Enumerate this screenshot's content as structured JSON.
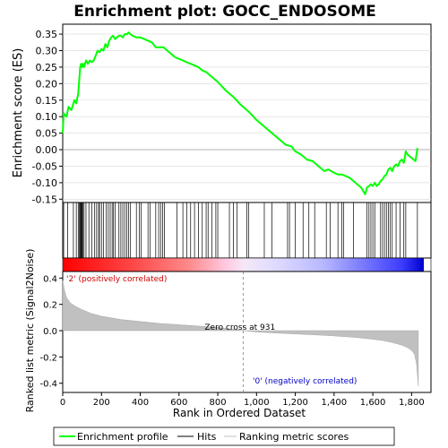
{
  "title": "Enrichment plot: GOCC_ENDOSOME",
  "chart_data": {
    "type": "line",
    "title": "Enrichment plot: GOCC_ENDOSOME",
    "es_panel": {
      "ylabel": "Enrichment score (ES)",
      "ylim": [
        -0.16,
        0.38
      ],
      "yticks": [
        -0.15,
        -0.1,
        -0.05,
        0.0,
        0.05,
        0.1,
        0.15,
        0.2,
        0.25,
        0.3,
        0.35
      ],
      "ytick_labels": [
        "-0.15",
        "-0.10",
        "-0.05",
        "0.00",
        "0.05",
        "0.10",
        "0.15",
        "0.20",
        "0.25",
        "0.30",
        "0.35"
      ],
      "series": [
        {
          "name": "Enrichment profile",
          "color": "#00ff00",
          "x": [
            0,
            5,
            10,
            20,
            30,
            45,
            60,
            70,
            80,
            90,
            95,
            100,
            105,
            110,
            120,
            130,
            140,
            150,
            160,
            170,
            180,
            190,
            200,
            210,
            220,
            230,
            240,
            250,
            260,
            270,
            280,
            290,
            300,
            310,
            320,
            330,
            340,
            350,
            360,
            380,
            400,
            420,
            440,
            460,
            480,
            500,
            520,
            540,
            560,
            580,
            600,
            620,
            640,
            660,
            680,
            700,
            720,
            740,
            760,
            780,
            800,
            840,
            880,
            920,
            960,
            1000,
            1050,
            1100,
            1150,
            1180,
            1200,
            1230,
            1260,
            1290,
            1320,
            1350,
            1370,
            1400,
            1420,
            1440,
            1460,
            1480,
            1500,
            1520,
            1540,
            1560,
            1570,
            1580,
            1590,
            1600,
            1610,
            1620,
            1630,
            1640,
            1650,
            1660,
            1670,
            1680,
            1690,
            1700,
            1710,
            1720,
            1730,
            1740,
            1750,
            1760,
            1770,
            1780,
            1790,
            1800,
            1810,
            1820,
            1830
          ],
          "y": [
            0.05,
            0.11,
            0.105,
            0.1,
            0.13,
            0.12,
            0.15,
            0.14,
            0.17,
            0.25,
            0.26,
            0.25,
            0.26,
            0.25,
            0.27,
            0.26,
            0.27,
            0.265,
            0.27,
            0.285,
            0.3,
            0.295,
            0.305,
            0.3,
            0.32,
            0.31,
            0.33,
            0.34,
            0.345,
            0.335,
            0.34,
            0.345,
            0.345,
            0.34,
            0.35,
            0.35,
            0.355,
            0.35,
            0.345,
            0.34,
            0.34,
            0.335,
            0.33,
            0.325,
            0.31,
            0.31,
            0.31,
            0.3,
            0.29,
            0.28,
            0.275,
            0.27,
            0.265,
            0.26,
            0.255,
            0.25,
            0.24,
            0.235,
            0.225,
            0.215,
            0.205,
            0.18,
            0.16,
            0.135,
            0.115,
            0.09,
            0.065,
            0.04,
            0.015,
            0.01,
            -0.005,
            -0.015,
            -0.03,
            -0.035,
            -0.05,
            -0.065,
            -0.06,
            -0.07,
            -0.075,
            -0.075,
            -0.08,
            -0.085,
            -0.095,
            -0.105,
            -0.115,
            -0.135,
            -0.115,
            -0.11,
            -0.105,
            -0.11,
            -0.1,
            -0.11,
            -0.105,
            -0.095,
            -0.09,
            -0.08,
            -0.075,
            -0.06,
            -0.055,
            -0.065,
            -0.05,
            -0.045,
            -0.05,
            -0.035,
            -0.03,
            -0.04,
            -0.005,
            -0.015,
            -0.02,
            -0.025,
            -0.03,
            -0.035,
            0.005
          ]
        }
      ]
    },
    "hits": {
      "name": "Hits",
      "color": "#000000",
      "x": [
        5,
        25,
        55,
        70,
        80,
        85,
        90,
        92,
        95,
        98,
        100,
        105,
        110,
        120,
        135,
        150,
        165,
        175,
        185,
        190,
        200,
        210,
        225,
        235,
        245,
        255,
        262,
        270,
        290,
        300,
        310,
        320,
        330,
        340,
        350,
        380,
        395,
        405,
        440,
        450,
        480,
        495,
        505,
        515,
        525,
        590,
        620,
        640,
        660,
        680,
        700,
        720,
        740,
        750,
        770,
        790,
        800,
        860,
        880,
        900,
        950,
        960,
        1040,
        1080,
        1160,
        1170,
        1200,
        1240,
        1270,
        1300,
        1360,
        1380,
        1420,
        1440,
        1450,
        1500,
        1570,
        1580,
        1590,
        1600,
        1610,
        1640,
        1650,
        1660,
        1670,
        1680,
        1690,
        1700,
        1720,
        1740,
        1760,
        1770,
        1830
      ]
    },
    "ranked_metric": {
      "name": "Ranking metric scores",
      "color": "#c0c0c0",
      "ylabel": "Ranked list metric (Signal2Noise)",
      "xlabel": "Rank in Ordered Dataset",
      "xlim": [
        0,
        1900
      ],
      "xticks": [
        0,
        200,
        400,
        600,
        800,
        1000,
        1200,
        1400,
        1600,
        1800
      ],
      "xtick_labels": [
        "0",
        "200",
        "400",
        "600",
        "800",
        "1,000",
        "1,200",
        "1,400",
        "1,600",
        "1,800"
      ],
      "ylim": [
        -0.47,
        0.45
      ],
      "yticks": [
        -0.4,
        -0.2,
        0.0,
        0.2,
        0.4
      ],
      "ytick_labels": [
        "-0.4",
        "-0.2",
        "0.0",
        "0.2",
        "0.4"
      ],
      "x": [
        0,
        10,
        20,
        40,
        60,
        80,
        100,
        150,
        200,
        300,
        400,
        500,
        600,
        700,
        800,
        931,
        1000,
        1100,
        1200,
        1300,
        1400,
        1500,
        1600,
        1650,
        1700,
        1750,
        1780,
        1800,
        1815,
        1825,
        1835
      ],
      "y": [
        0.38,
        0.3,
        0.25,
        0.21,
        0.19,
        0.175,
        0.16,
        0.13,
        0.11,
        0.085,
        0.07,
        0.055,
        0.045,
        0.035,
        0.025,
        0.0,
        -0.01,
        -0.018,
        -0.025,
        -0.032,
        -0.04,
        -0.05,
        -0.065,
        -0.075,
        -0.09,
        -0.11,
        -0.13,
        -0.15,
        -0.18,
        -0.25,
        -0.42
      ],
      "zero_cross": 931,
      "zero_cross_label": "Zero cross at 931",
      "pos_label": "'2' (positively correlated)",
      "neg_label": "'0' (negatively correlated)",
      "total": 1840
    },
    "legend": {
      "placement": "bottom",
      "items": [
        {
          "label": "Enrichment profile",
          "color": "#00ff00"
        },
        {
          "label": "Hits",
          "color": "#000000"
        },
        {
          "label": "Ranking metric scores",
          "color": "#c0c0c0"
        }
      ]
    }
  }
}
